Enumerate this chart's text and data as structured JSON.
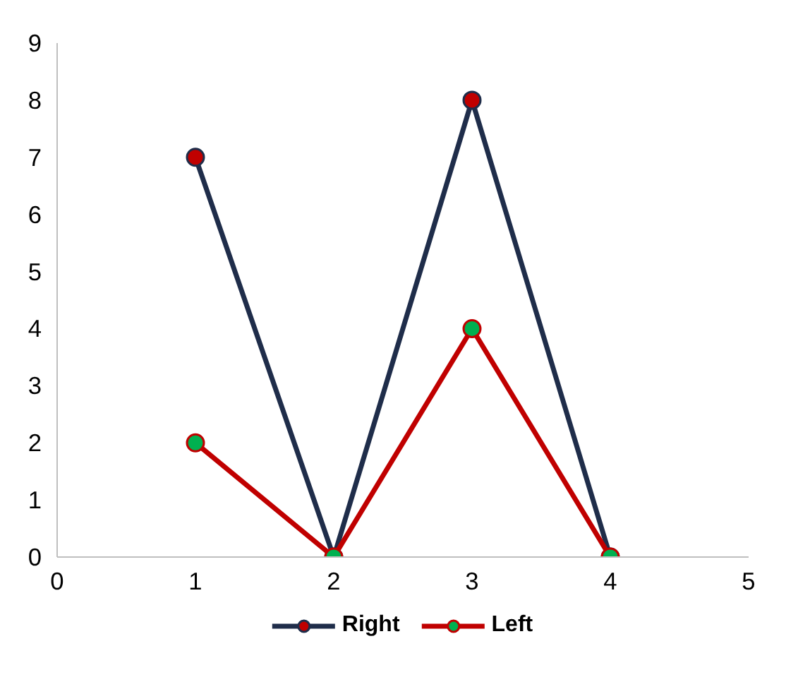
{
  "chart_data": {
    "type": "line",
    "x": [
      1,
      2,
      3,
      4
    ],
    "series": [
      {
        "name": "Right",
        "color": "#1f2d4a",
        "colors": [
          "#c00000",
          "#c00000",
          "#c00000",
          "#c00000"
        ],
        "values": [
          7,
          0,
          8,
          0
        ]
      },
      {
        "name": "Left",
        "color": "#c00000",
        "colors": [
          "#00b050",
          "#00b050",
          "#00b050",
          "#00b050"
        ],
        "values": [
          2,
          0,
          4,
          0
        ]
      }
    ],
    "xlim": [
      0,
      5
    ],
    "ylim": [
      0,
      9
    ],
    "xticks": [
      0,
      1,
      2,
      3,
      4,
      5
    ],
    "yticks": [
      0,
      1,
      2,
      3,
      4,
      5,
      6,
      7,
      8,
      9
    ],
    "grid": false,
    "legend": "bottom",
    "marker": "circle",
    "line_style": "solid"
  }
}
